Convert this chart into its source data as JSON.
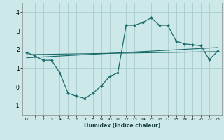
{
  "xlabel": "Humidex (Indice chaleur)",
  "background_color": "#cce8e8",
  "line_color": "#1a6b6b",
  "grid_color": "#aacccc",
  "xlim": [
    -0.5,
    23.5
  ],
  "ylim": [
    -1.5,
    4.5
  ],
  "xticks": [
    0,
    1,
    2,
    3,
    4,
    5,
    6,
    7,
    8,
    9,
    10,
    11,
    12,
    13,
    14,
    15,
    16,
    17,
    18,
    19,
    20,
    21,
    22,
    23
  ],
  "yticks": [
    -1,
    0,
    1,
    2,
    3,
    4
  ],
  "curve1_x": [
    0,
    1,
    2,
    3,
    4,
    5,
    6,
    7,
    8,
    9,
    10,
    11,
    12,
    13,
    14,
    15,
    16,
    17,
    18,
    19,
    20,
    21,
    22,
    23
  ],
  "curve1_y": [
    1.85,
    1.65,
    1.42,
    1.42,
    0.75,
    -0.35,
    -0.5,
    -0.62,
    -0.35,
    0.05,
    0.55,
    0.75,
    3.3,
    3.3,
    3.45,
    3.7,
    3.3,
    3.3,
    2.45,
    2.3,
    2.25,
    2.2,
    1.45,
    1.9
  ],
  "line1_x": [
    0,
    23
  ],
  "line1_y": [
    1.55,
    2.1
  ],
  "line2_x": [
    0,
    23
  ],
  "line2_y": [
    1.72,
    1.88
  ]
}
